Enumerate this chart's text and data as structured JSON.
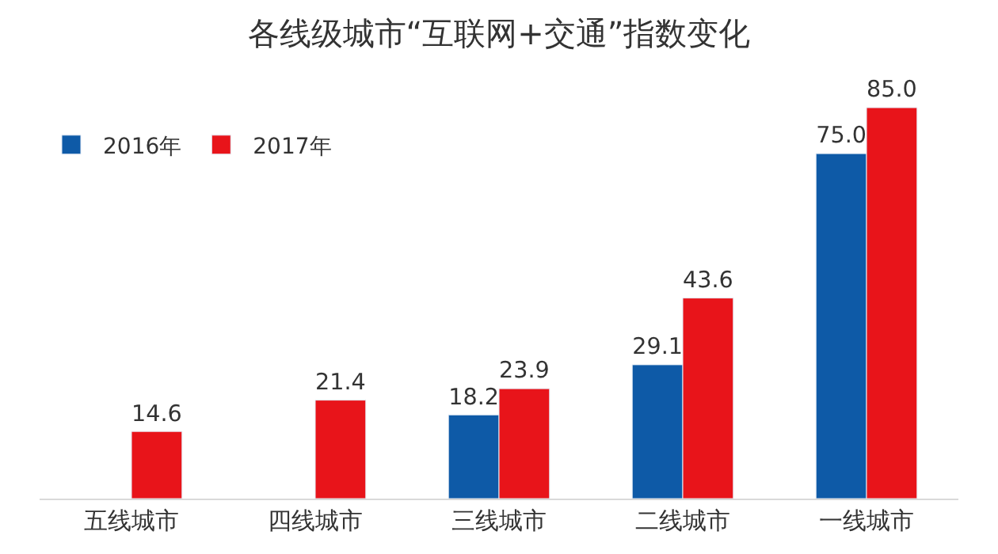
{
  "chart_data": {
    "type": "bar",
    "title": "各线级城市“互联网+交通”指数变化",
    "categories": [
      "五线城市",
      "四线城市",
      "三线城市",
      "二线城市",
      "一线城市"
    ],
    "series": [
      {
        "name": "2016年",
        "color": "#0e5aa7",
        "values": [
          null,
          null,
          18.2,
          29.1,
          75.0
        ],
        "value_labels": [
          null,
          null,
          "18.2",
          "29.1",
          "75.0"
        ]
      },
      {
        "name": "2017年",
        "color": "#e8141a",
        "values": [
          14.6,
          21.4,
          23.9,
          43.6,
          85.0
        ],
        "value_labels": [
          "14.6",
          "21.4",
          "23.9",
          "43.6",
          "85.0"
        ]
      }
    ],
    "tick_labels": "x",
    "legend": "top left"
  }
}
